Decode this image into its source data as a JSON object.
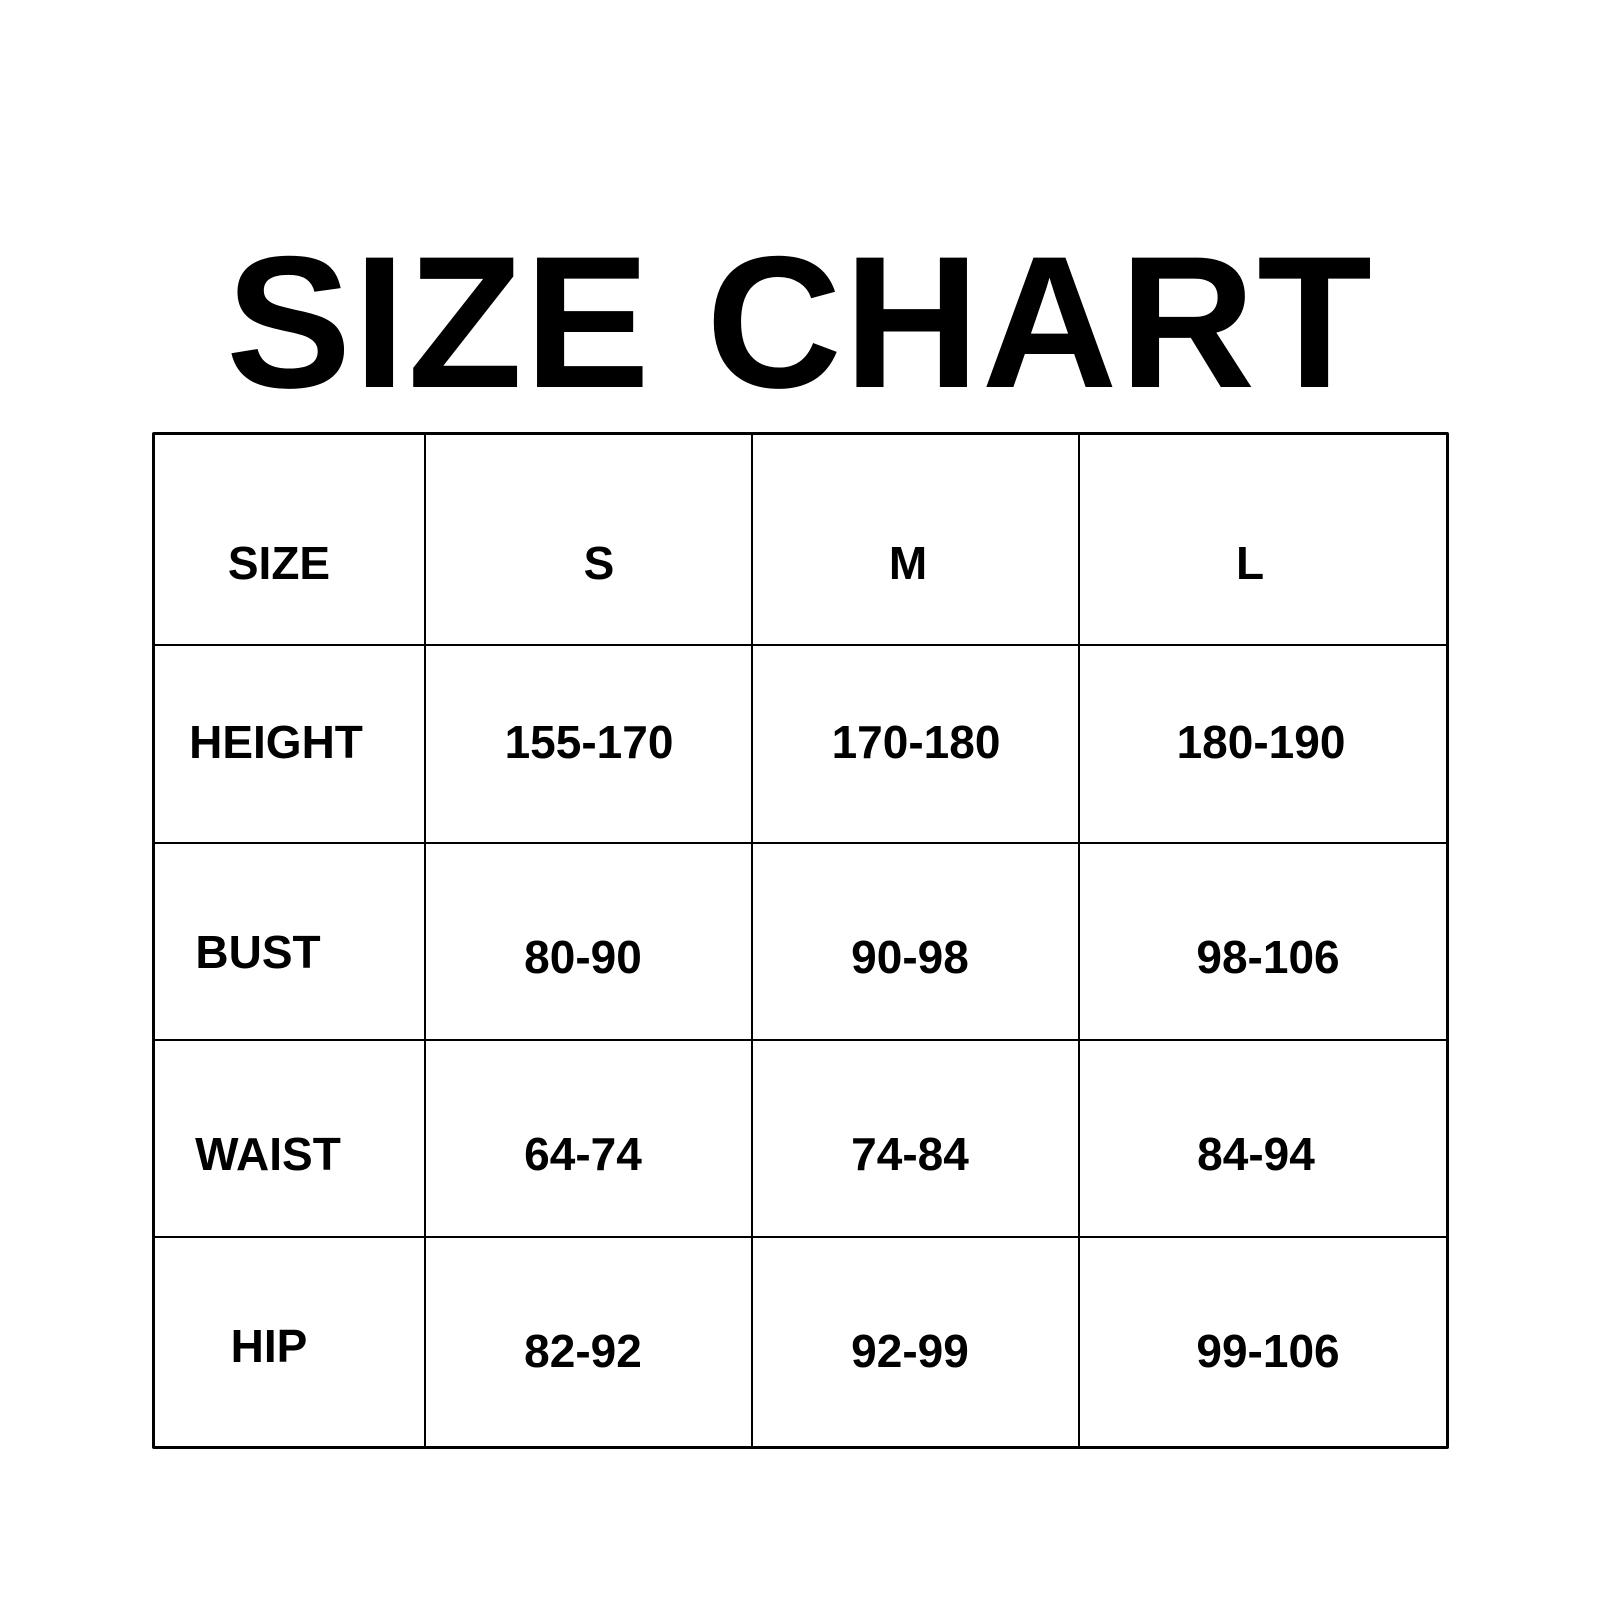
{
  "title": "SIZE CHART",
  "table": {
    "header": [
      "SIZE",
      "S",
      "M",
      "L"
    ],
    "rows": [
      [
        "HEIGHT",
        "155-170",
        "170-180",
        "180-190"
      ],
      [
        "BUST",
        "80-90",
        "90-98",
        "98-106"
      ],
      [
        "WAIST",
        "64-74",
        "74-84",
        "84-94"
      ],
      [
        "HIP",
        "82-92",
        "92-99",
        "99-106"
      ]
    ]
  }
}
